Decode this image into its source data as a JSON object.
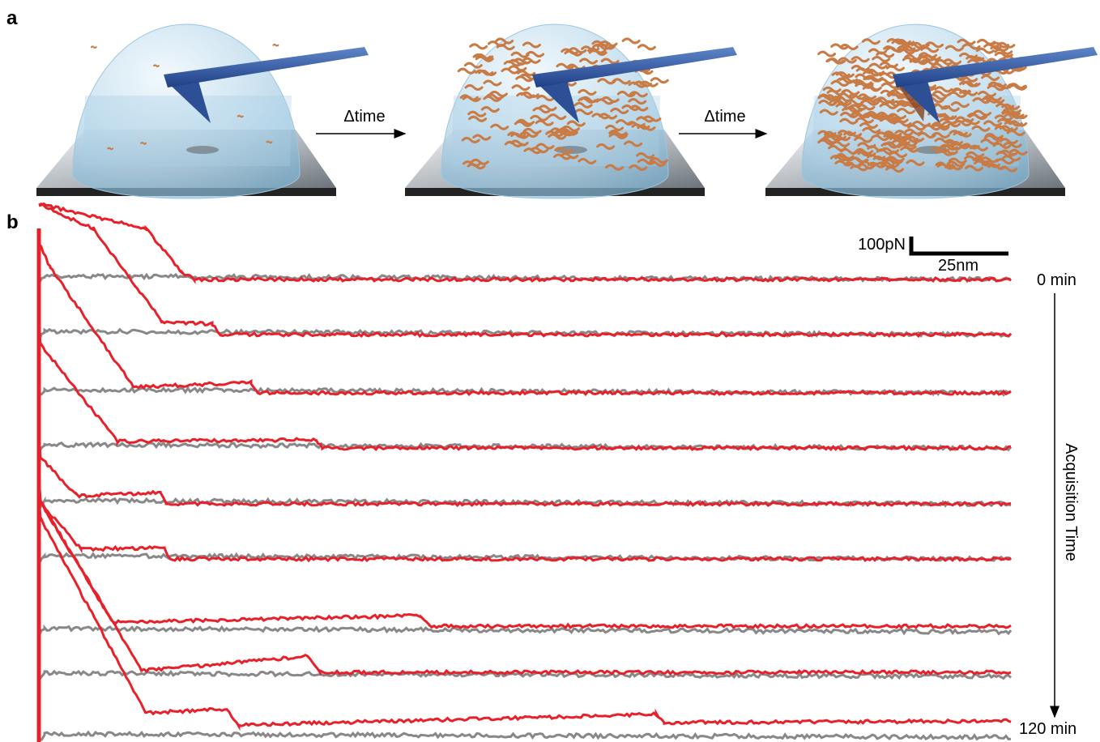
{
  "panel_a": {
    "label": "a",
    "steps": [
      "Δtime",
      "Δtime"
    ]
  },
  "panel_b": {
    "label": "b",
    "scale_bar": {
      "force": "100pN",
      "distance": "25nm"
    },
    "time_start": "0 min",
    "time_end": "120 min",
    "axis_label": "Acquisition Time"
  }
}
